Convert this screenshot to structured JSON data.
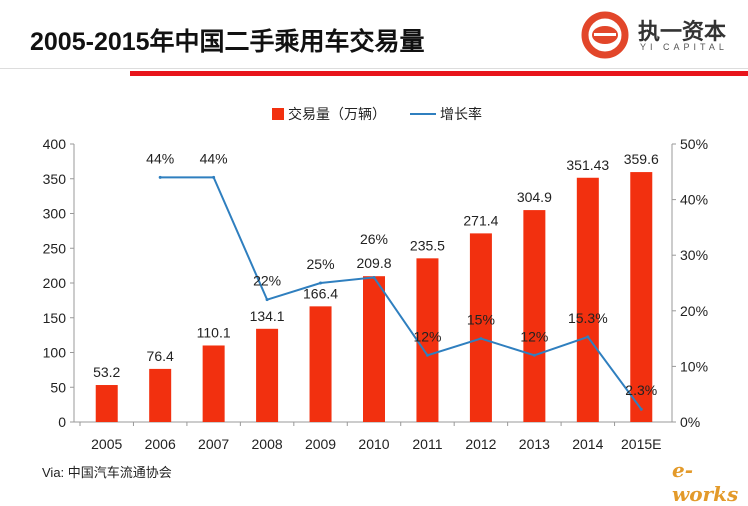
{
  "header": {
    "title": "2005-2015年中国二手乘用车交易量"
  },
  "logo": {
    "cn": "执一资本",
    "en": "YI CAPITAL",
    "accent": "#e2462a"
  },
  "source": "Via: 中国汽车流通协会",
  "watermark": "e-works",
  "chart_data": {
    "type": "bar+line",
    "categories": [
      "2005",
      "2006",
      "2007",
      "2008",
      "2009",
      "2010",
      "2011",
      "2012",
      "2013",
      "2014",
      "2015E"
    ],
    "series": [
      {
        "name": "交易量（万辆）",
        "type": "bar",
        "axis": "left",
        "color": "#f2300f",
        "values": [
          53.2,
          76.4,
          110.1,
          134.1,
          166.4,
          209.8,
          235.5,
          271.4,
          304.9,
          351.43,
          359.6
        ],
        "labels": [
          "53.2",
          "76.4",
          "110.1",
          "134.1",
          "166.4",
          "209.8",
          "235.5",
          "271.4",
          "304.9",
          "351.43",
          "359.6"
        ]
      },
      {
        "name": "增长率",
        "type": "line",
        "axis": "right",
        "color": "#2f7fbf",
        "values": [
          null,
          44,
          44,
          22,
          25,
          26,
          12,
          15,
          12,
          15.3,
          2.3
        ],
        "labels": [
          "",
          "44%",
          "44%",
          "22%",
          "25%",
          "26%",
          "12%",
          "15%",
          "12%",
          "15.3%",
          "2.3%"
        ]
      }
    ],
    "left_axis": {
      "range": [
        0,
        400
      ],
      "ticks": [
        "0",
        "50",
        "100",
        "150",
        "200",
        "250",
        "300",
        "350",
        "400"
      ]
    },
    "right_axis": {
      "range": [
        0,
        50
      ],
      "ticks": [
        "0%",
        "10%",
        "20%",
        "30%",
        "40%",
        "50%"
      ]
    },
    "legend": "top-center",
    "grid": false
  }
}
